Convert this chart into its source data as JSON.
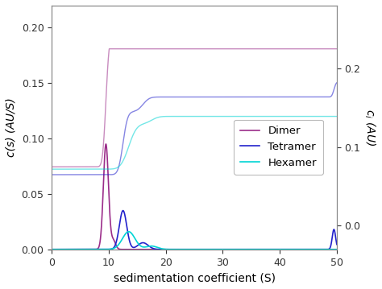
{
  "xlabel": "sedimentation coefficient (S)",
  "ylabel_left": "c(s) (AU/S)",
  "ylabel_right": "$c_i$ (AU)",
  "xlim": [
    0,
    50
  ],
  "ylim_left": [
    0,
    0.22
  ],
  "ylim_right": [
    -0.03,
    0.28
  ],
  "yticks_left": [
    0.0,
    0.05,
    0.1,
    0.15,
    0.2
  ],
  "yticks_right": [
    0.0,
    0.1,
    0.2
  ],
  "xticks": [
    0,
    10,
    20,
    30,
    40,
    50
  ],
  "colors": {
    "dimer": "#9b2d8a",
    "tetramer": "#2222cc",
    "hexamer": "#00d4d4"
  },
  "legend_labels": [
    "Dimer",
    "Tetramer",
    "Hexamer"
  ]
}
